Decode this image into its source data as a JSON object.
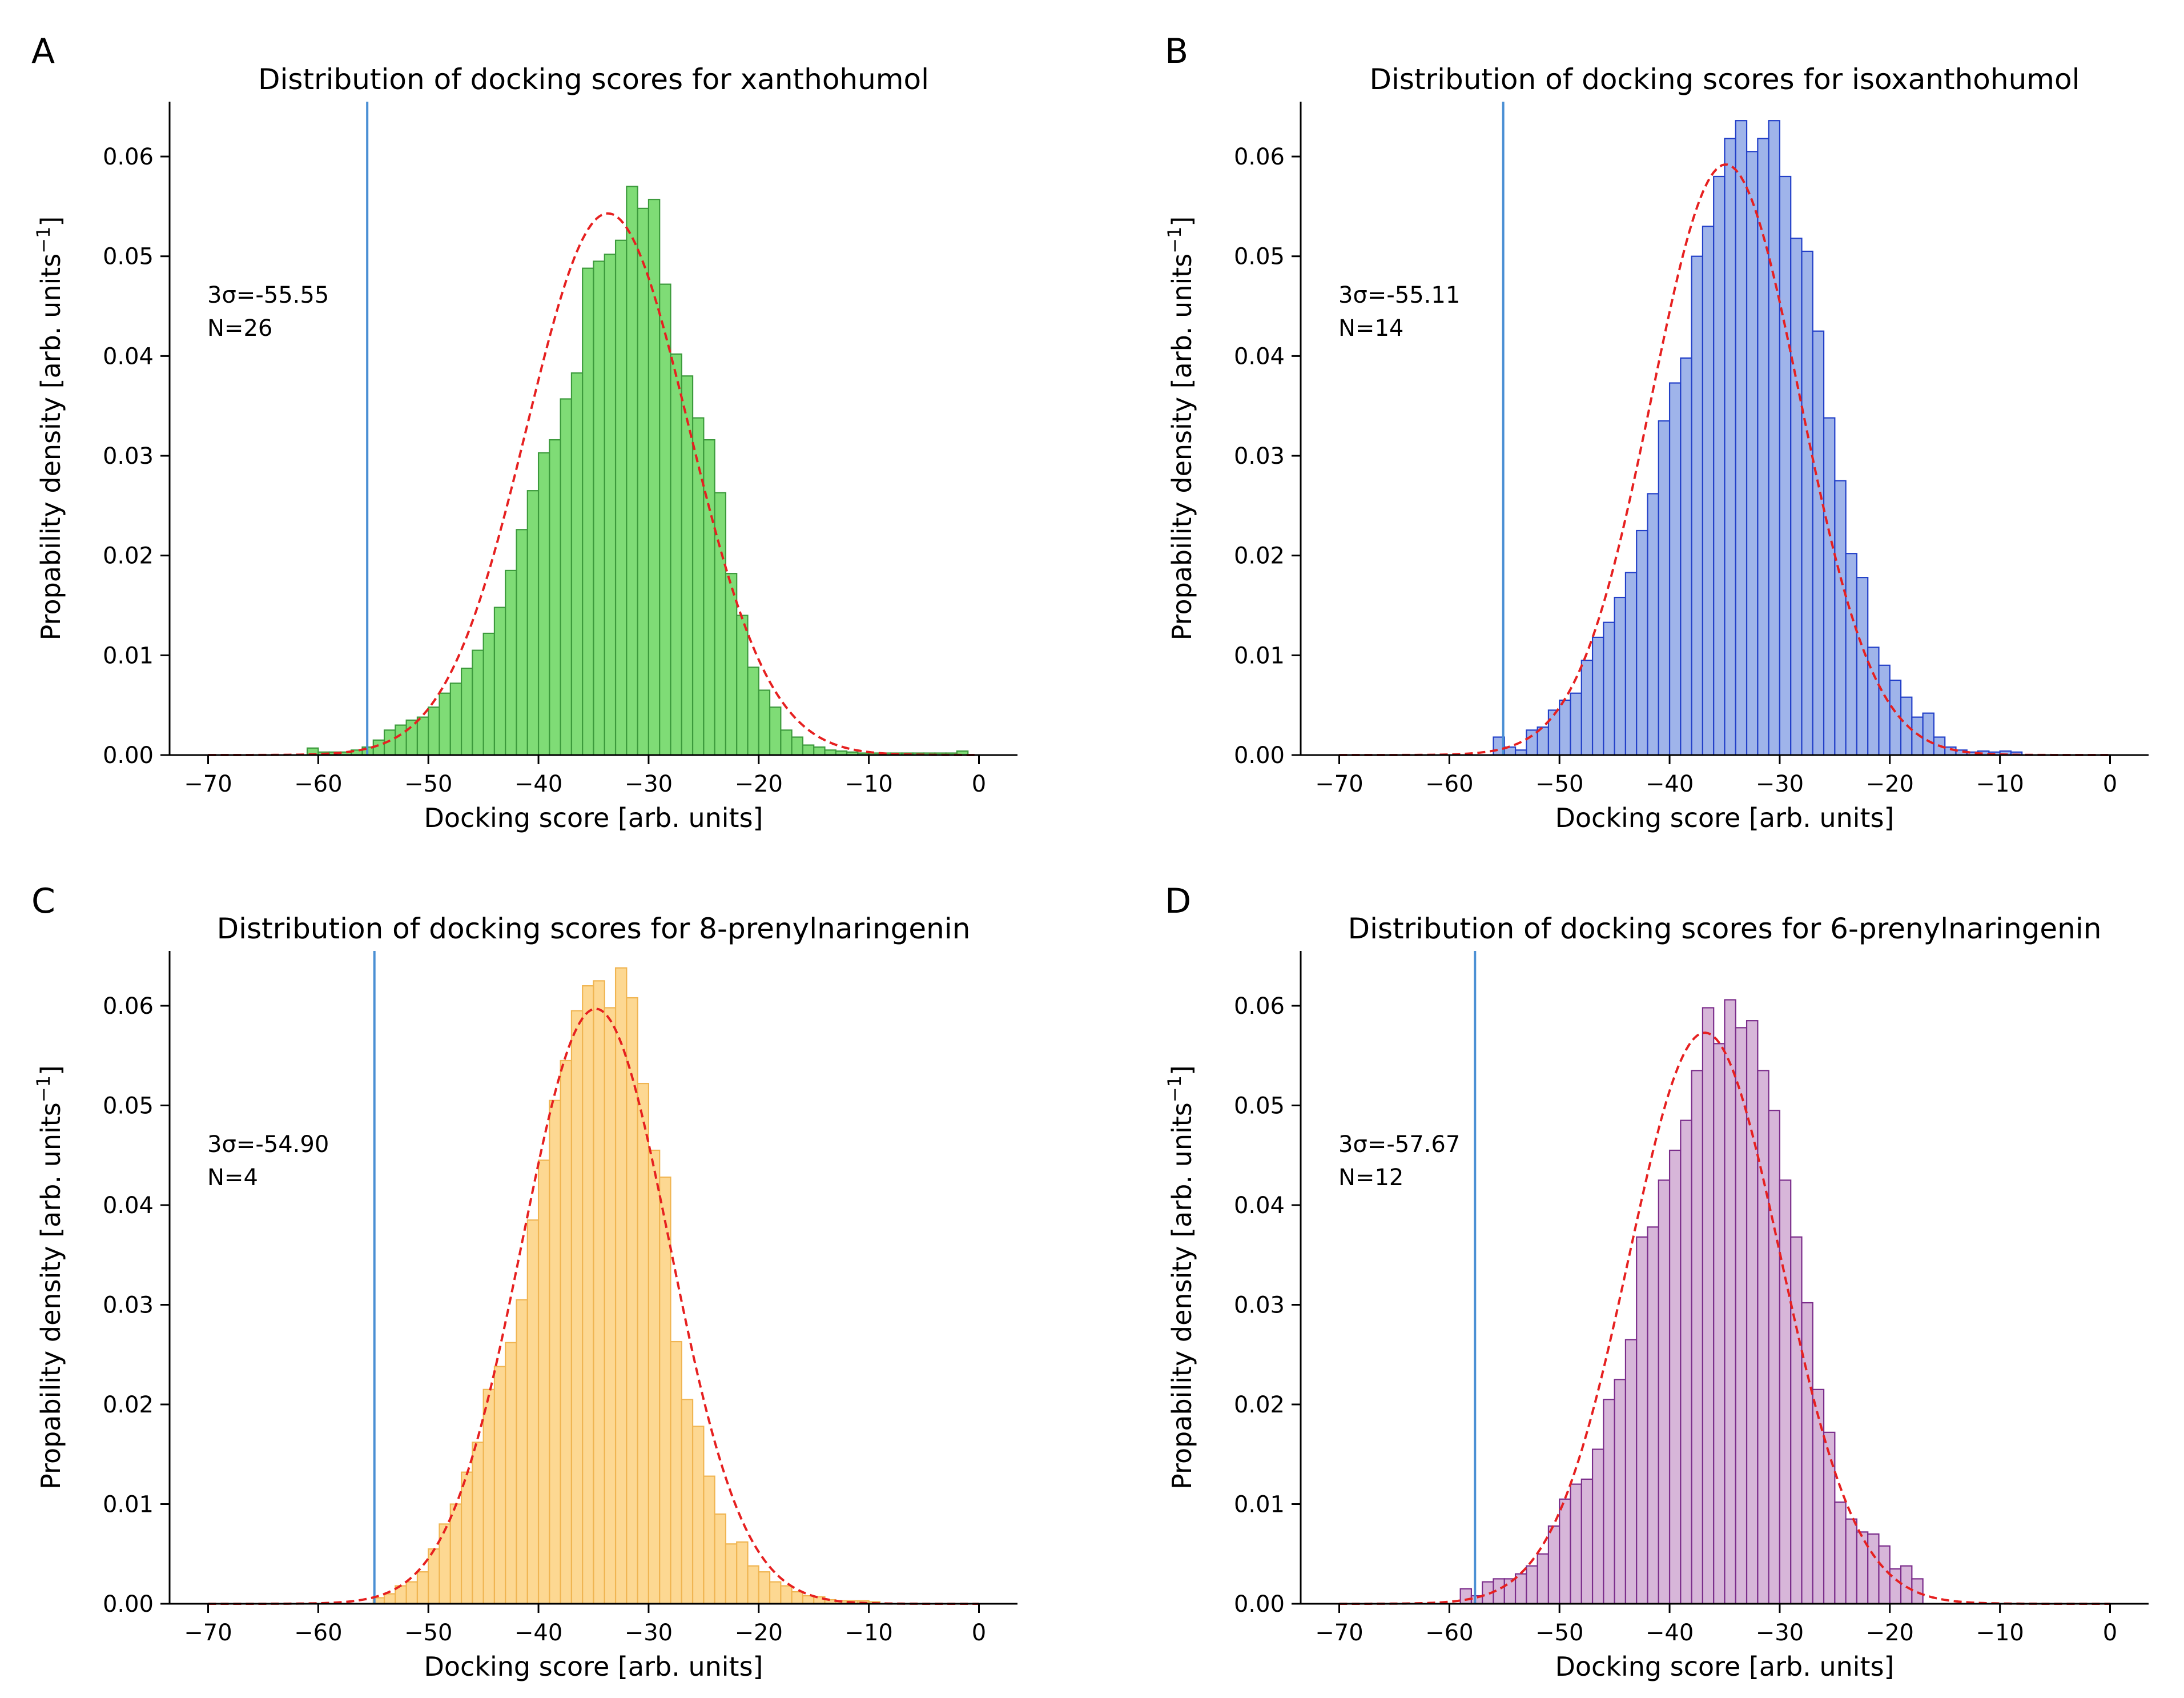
{
  "figure": {
    "domain": "Chart"
  },
  "chart_data": [
    {
      "panel_label": "A",
      "type": "bar",
      "title": "Distribution of docking scores for xanthohumol",
      "xlabel": "Docking score [arb. units]",
      "ylabel_main": "Propability density [arb. units",
      "ylabel_sup": "−1",
      "ylabel_end": "]",
      "xlim": [
        -73.5,
        3.5
      ],
      "ylim": [
        0,
        0.0655
      ],
      "xticks": [
        -70,
        -60,
        -50,
        -40,
        -30,
        -20,
        -10,
        0
      ],
      "yticks": [
        0.0,
        0.01,
        0.02,
        0.03,
        0.04,
        0.05,
        0.06
      ],
      "annotation": [
        "3σ=-55.55",
        "N=26"
      ],
      "vline_x": -55.55,
      "fill_color": "#7fdc76",
      "edge_color": "#3c9a3c",
      "fit": {
        "mean": -33.7,
        "std": 7.35,
        "peak": 0.0543,
        "color": "#e62020"
      },
      "bins": {
        "start": -61,
        "width": 1,
        "values": [
          0.0007,
          0.0003,
          0.0003,
          0.0003,
          0.0005,
          0.0008,
          0.0015,
          0.0025,
          0.003,
          0.0035,
          0.0038,
          0.0048,
          0.0062,
          0.0072,
          0.0087,
          0.0105,
          0.0122,
          0.0148,
          0.0185,
          0.0226,
          0.0265,
          0.0303,
          0.0316,
          0.0357,
          0.0383,
          0.0488,
          0.0495,
          0.0502,
          0.0516,
          0.057,
          0.0548,
          0.0557,
          0.0472,
          0.0402,
          0.038,
          0.0338,
          0.0316,
          0.0263,
          0.0182,
          0.014,
          0.0088,
          0.0065,
          0.0048,
          0.0025,
          0.0018,
          0.001,
          0.0008,
          0.0005,
          0.0004,
          0.0003,
          0.0002,
          0.0002,
          0.0002,
          0.0002,
          0.0002,
          0.0002,
          0.0002,
          0.0002,
          0.0002,
          0.0004
        ]
      }
    },
    {
      "panel_label": "B",
      "type": "bar",
      "title": "Distribution of docking scores for isoxanthohumol",
      "xlabel": "Docking score [arb. units]",
      "ylabel_main": "Propability density [arb. units",
      "ylabel_sup": "−1",
      "ylabel_end": "]",
      "xlim": [
        -73.5,
        3.5
      ],
      "ylim": [
        0,
        0.0655
      ],
      "xticks": [
        -70,
        -60,
        -50,
        -40,
        -30,
        -20,
        -10,
        0
      ],
      "yticks": [
        0.0,
        0.01,
        0.02,
        0.03,
        0.04,
        0.05,
        0.06
      ],
      "annotation": [
        "3σ=-55.11",
        "N=14"
      ],
      "vline_x": -55.11,
      "fill_color": "#9fb4ea",
      "edge_color": "#2340c8",
      "fit": {
        "mean": -34.9,
        "std": 6.73,
        "peak": 0.0592,
        "color": "#e62020"
      },
      "bins": {
        "start": -56,
        "width": 1,
        "values": [
          0.0018,
          0.0008,
          0.0005,
          0.0025,
          0.0028,
          0.0045,
          0.0055,
          0.0062,
          0.0095,
          0.0118,
          0.0133,
          0.0158,
          0.0183,
          0.0225,
          0.0262,
          0.0335,
          0.0373,
          0.0398,
          0.05,
          0.053,
          0.058,
          0.0618,
          0.0636,
          0.0605,
          0.0618,
          0.0636,
          0.058,
          0.0518,
          0.0505,
          0.0425,
          0.0338,
          0.0275,
          0.0202,
          0.0178,
          0.0108,
          0.009,
          0.0075,
          0.0058,
          0.0038,
          0.0042,
          0.0018,
          0.0008,
          0.0005,
          0.0003,
          0.0004,
          0.0003,
          0.0004,
          0.0003
        ]
      }
    },
    {
      "panel_label": "C",
      "type": "bar",
      "title": "Distribution of docking scores for 8-prenylnaringenin",
      "xlabel": "Docking score [arb. units]",
      "ylabel_main": "Propability density [arb. units",
      "ylabel_sup": "−1",
      "ylabel_end": "]",
      "xlim": [
        -73.5,
        3.5
      ],
      "ylim": [
        0,
        0.0655
      ],
      "xticks": [
        -70,
        -60,
        -50,
        -40,
        -30,
        -20,
        -10,
        0
      ],
      "yticks": [
        0.0,
        0.01,
        0.02,
        0.03,
        0.04,
        0.05,
        0.06
      ],
      "annotation": [
        "3σ=-54.90",
        "N=4"
      ],
      "vline_x": -54.9,
      "fill_color": "#fdd892",
      "edge_color": "#f0b552",
      "fit": {
        "mean": -34.8,
        "std": 6.7,
        "peak": 0.0597,
        "color": "#e62020"
      },
      "bins": {
        "start": -55,
        "width": 1,
        "values": [
          0.0006,
          0.001,
          0.0018,
          0.0022,
          0.0032,
          0.0055,
          0.008,
          0.01,
          0.0132,
          0.0162,
          0.0215,
          0.0238,
          0.0262,
          0.0305,
          0.0385,
          0.0445,
          0.0505,
          0.0545,
          0.0595,
          0.062,
          0.0625,
          0.0598,
          0.0638,
          0.0608,
          0.0522,
          0.0455,
          0.0428,
          0.0263,
          0.0205,
          0.0178,
          0.0128,
          0.009,
          0.006,
          0.0062,
          0.0038,
          0.0032,
          0.0022,
          0.0018,
          0.0012,
          0.0008,
          0.0007,
          0.0004,
          0.0003,
          0.0003,
          0.0003,
          0.0002
        ]
      }
    },
    {
      "panel_label": "D",
      "type": "bar",
      "title": "Distribution of docking scores for 6-prenylnaringenin",
      "xlabel": "Docking score [arb. units]",
      "ylabel_main": "Propability density [arb. units",
      "ylabel_sup": "−1",
      "ylabel_end": "]",
      "xlim": [
        -73.5,
        3.5
      ],
      "ylim": [
        0,
        0.0655
      ],
      "xticks": [
        -70,
        -60,
        -50,
        -40,
        -30,
        -20,
        -10,
        0
      ],
      "yticks": [
        0.0,
        0.01,
        0.02,
        0.03,
        0.04,
        0.05,
        0.06
      ],
      "annotation": [
        "3σ=-57.67",
        "N=12"
      ],
      "vline_x": -57.67,
      "fill_color": "#d7b6d9",
      "edge_color": "#7b2d8b",
      "fit": {
        "mean": -36.8,
        "std": 6.9,
        "peak": 0.0573,
        "color": "#e62020"
      },
      "bins": {
        "start": -59,
        "width": 1,
        "values": [
          0.0015,
          0.0008,
          0.0022,
          0.0025,
          0.0025,
          0.003,
          0.0038,
          0.005,
          0.0078,
          0.0105,
          0.012,
          0.0125,
          0.0155,
          0.0205,
          0.0225,
          0.0265,
          0.0368,
          0.0378,
          0.0425,
          0.0455,
          0.0485,
          0.0535,
          0.0598,
          0.0562,
          0.0606,
          0.0578,
          0.0585,
          0.0535,
          0.0495,
          0.0425,
          0.0368,
          0.0302,
          0.0215,
          0.0172,
          0.0102,
          0.0085,
          0.0072,
          0.007,
          0.0058,
          0.0035,
          0.0038,
          0.0025
        ]
      }
    }
  ]
}
